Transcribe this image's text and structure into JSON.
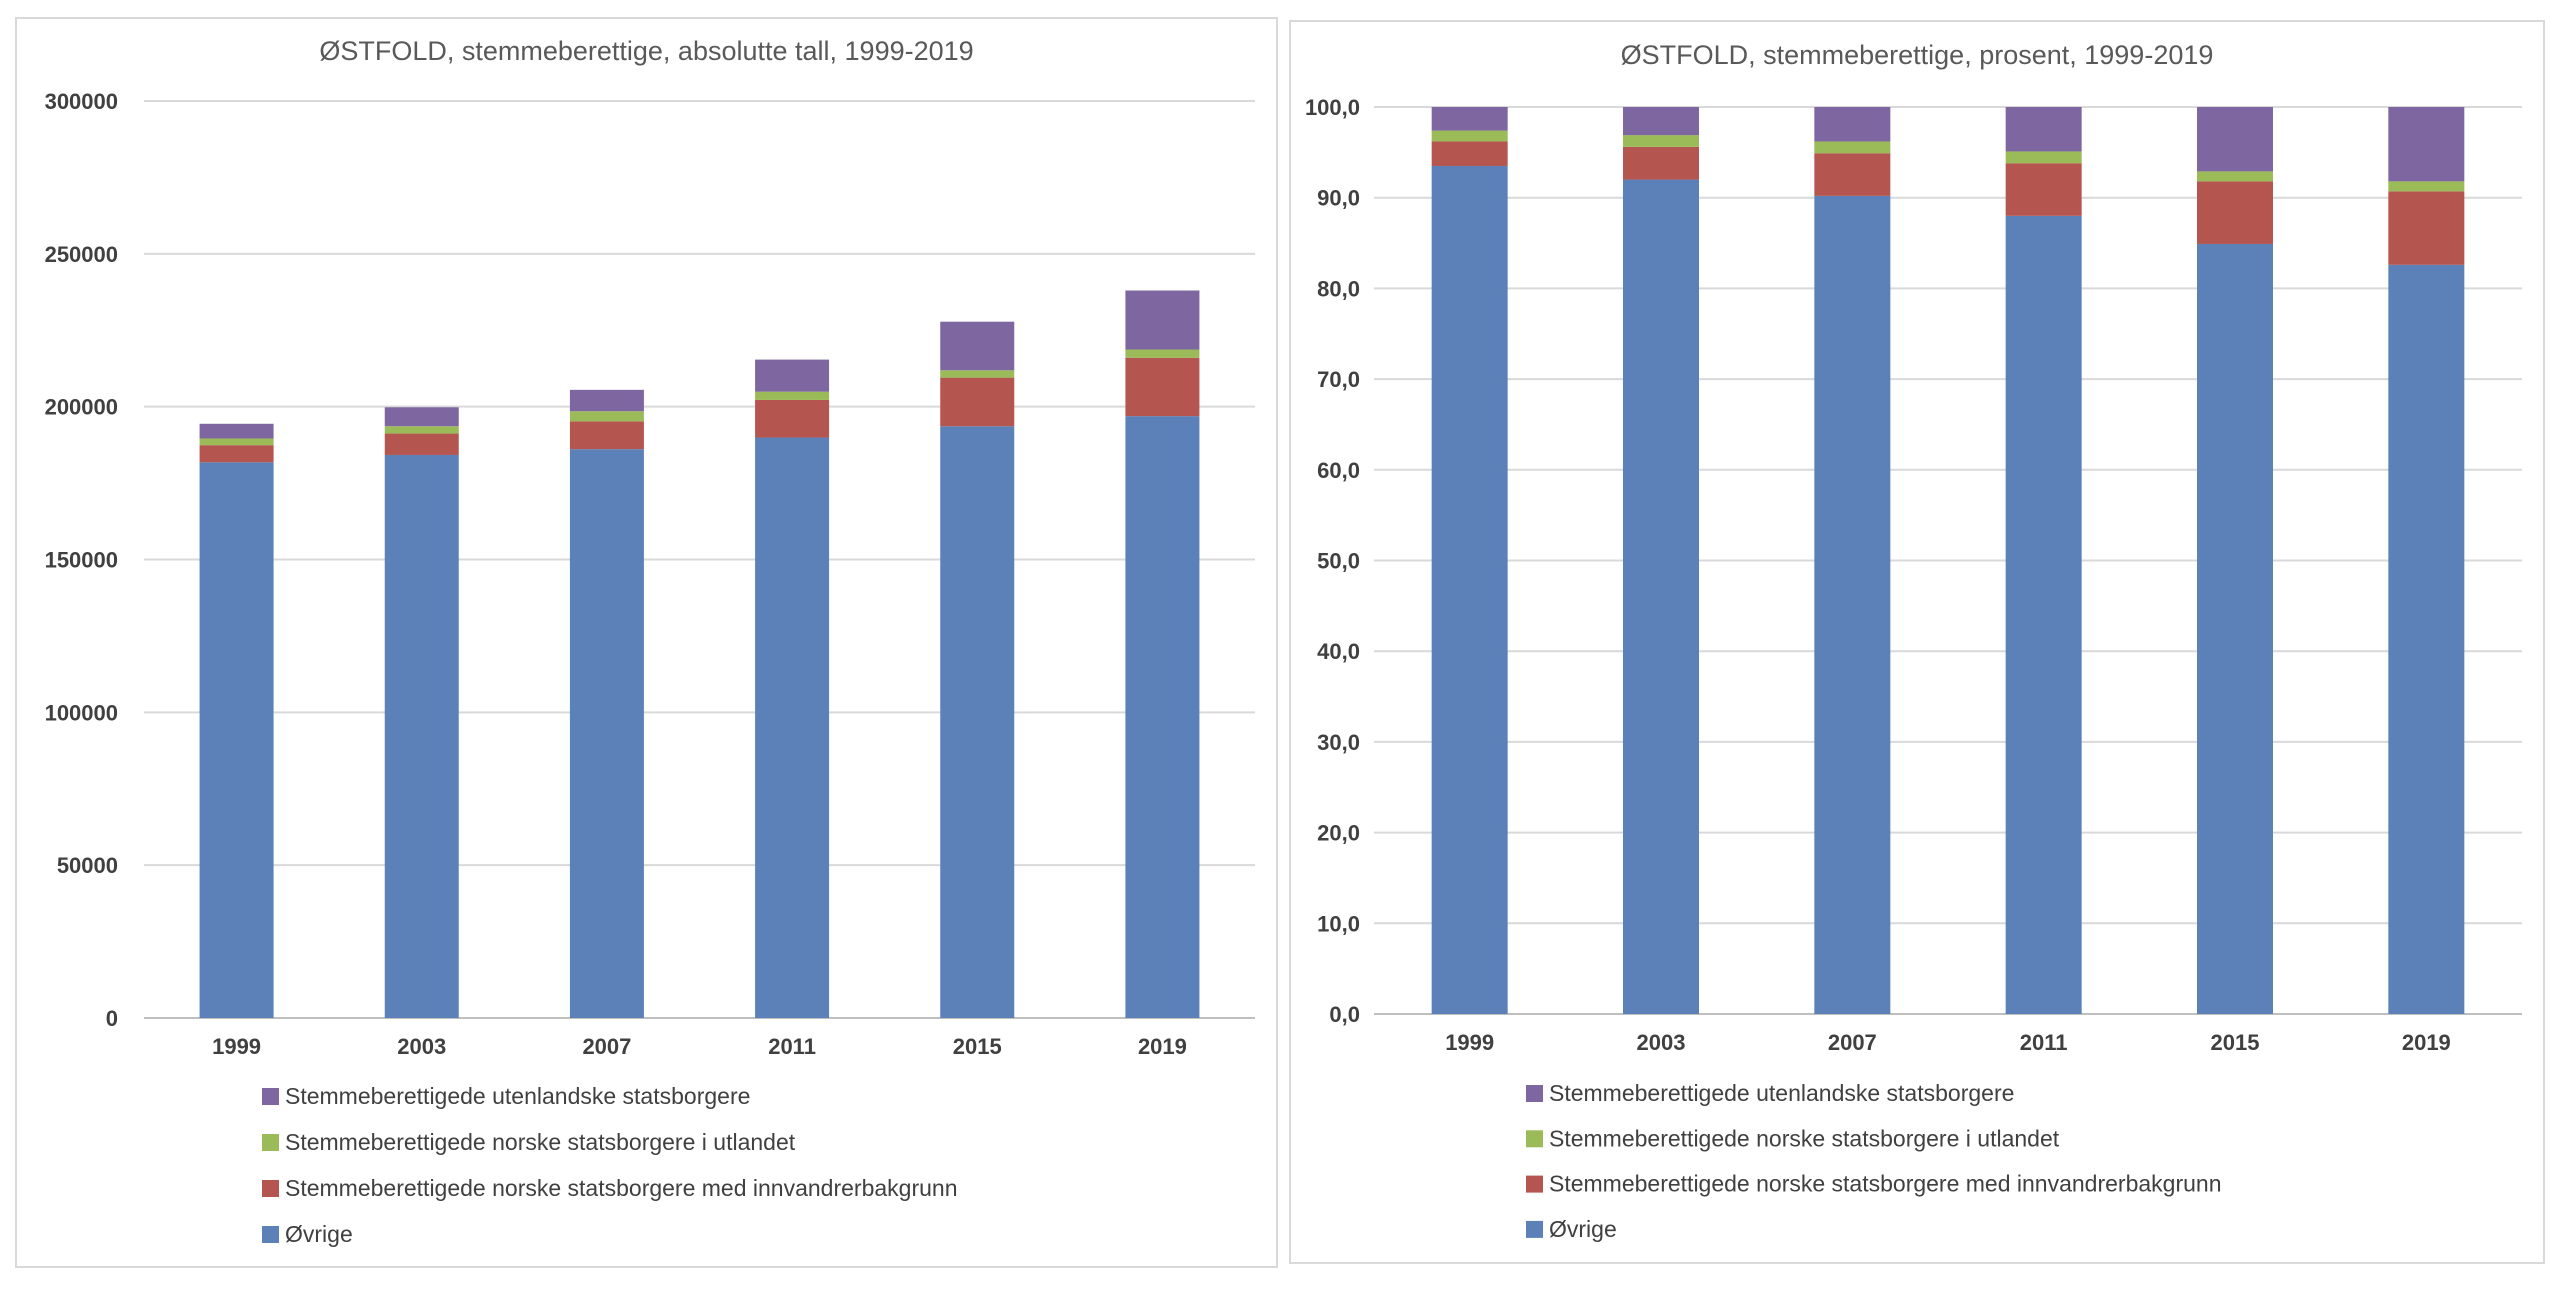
{
  "colors": {
    "Øvrige": "#5B81B8",
    "innvandrer": "#B4554F",
    "utlandet": "#9BBB59",
    "utenlandske": "#7E66A0"
  },
  "chart_data": [
    {
      "type": "bar",
      "stacked": true,
      "title": "ØSTFOLD, stemmeberettige, absolutte tall, 1999-2019",
      "xlabel": "",
      "ylabel": "",
      "categories": [
        "1999",
        "2003",
        "2007",
        "2011",
        "2015",
        "2019"
      ],
      "ylim": [
        0,
        300000
      ],
      "yticks": [
        0,
        50000,
        100000,
        150000,
        200000,
        250000,
        300000
      ],
      "ytick_labels": [
        "0",
        "50000",
        "100000",
        "150000",
        "200000",
        "250000",
        "300000"
      ],
      "grid": true,
      "legend_position": "bottom",
      "series": [
        {
          "name": "Øvrige",
          "color": "#5B81B8",
          "values": [
            181800,
            184200,
            186100,
            189900,
            193600,
            196900
          ]
        },
        {
          "name": "Stemmeberettigede norske statsborgere med innvandrerbakgrunn",
          "color": "#B4554F",
          "values": [
            5600,
            7000,
            9100,
            12300,
            15900,
            19100
          ]
        },
        {
          "name": "Stemmeberettigede norske statsborgere i utlandet",
          "color": "#9BBB59",
          "values": [
            2200,
            2400,
            3300,
            2700,
            2400,
            2700
          ]
        },
        {
          "name": "Stemmeberettigede utenlandske statsborgere",
          "color": "#7E66A0",
          "values": [
            4800,
            6200,
            7000,
            10500,
            15900,
            19300
          ]
        }
      ]
    },
    {
      "type": "bar",
      "stacked": true,
      "title": "ØSTFOLD, stemmeberettige, prosent, 1999-2019",
      "xlabel": "",
      "ylabel": "",
      "categories": [
        "1999",
        "2003",
        "2007",
        "2011",
        "2015",
        "2019"
      ],
      "ylim": [
        0,
        100
      ],
      "yticks": [
        0,
        10,
        20,
        30,
        40,
        50,
        60,
        70,
        80,
        90,
        100
      ],
      "ytick_labels": [
        "0,0",
        "10,0",
        "20,0",
        "30,0",
        "40,0",
        "50,0",
        "60,0",
        "70,0",
        "80,0",
        "90,0",
        "100,0"
      ],
      "grid": true,
      "legend_position": "bottom",
      "series": [
        {
          "name": "Øvrige",
          "color": "#5B81B8",
          "values": [
            93.5,
            92.0,
            90.2,
            88.0,
            84.9,
            82.6
          ]
        },
        {
          "name": "Stemmeberettigede norske statsborgere med innvandrerbakgrunn",
          "color": "#B4554F",
          "values": [
            2.7,
            3.6,
            4.7,
            5.8,
            6.9,
            8.1
          ]
        },
        {
          "name": "Stemmeberettigede norske statsborgere i utlandet",
          "color": "#9BBB59",
          "values": [
            1.2,
            1.3,
            1.3,
            1.3,
            1.1,
            1.1
          ]
        },
        {
          "name": "Stemmeberettigede utenlandske statsborgere",
          "color": "#7E66A0",
          "values": [
            2.6,
            3.1,
            3.8,
            4.9,
            7.1,
            8.2
          ]
        }
      ]
    }
  ]
}
